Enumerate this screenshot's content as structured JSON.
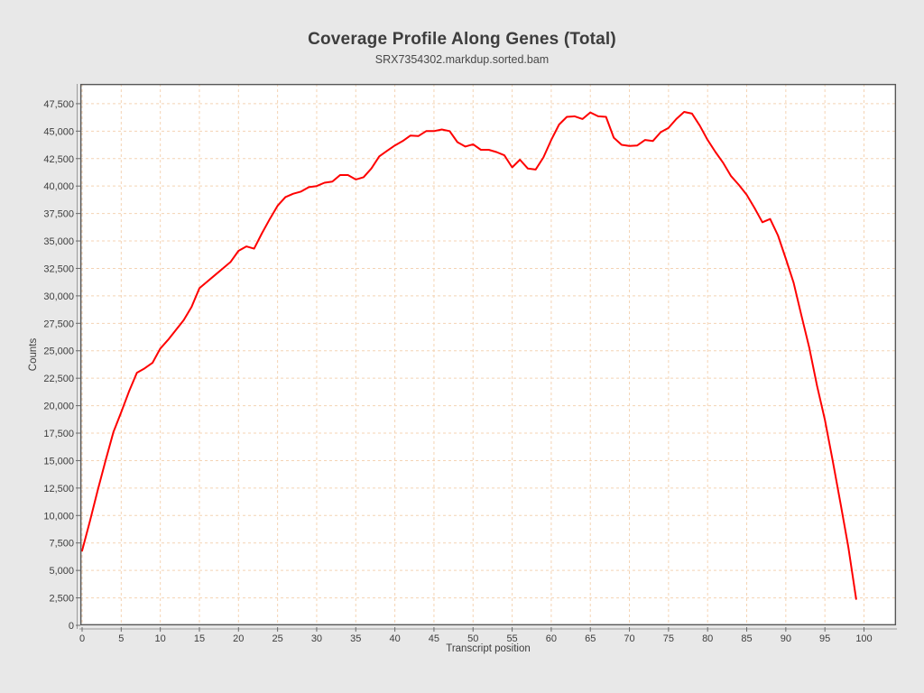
{
  "header": {
    "title": "Coverage Profile Along Genes (Total)",
    "subtitle": "SRX7354302.markdup.sorted.bam"
  },
  "colors": {
    "page_background": "#e8e8e8",
    "plot_background": "#ffffff",
    "grid": "#f4d3b3",
    "line": "#fe0000",
    "border": "#575757",
    "axis": "#9a9a9a",
    "tick": "#6b6b6b",
    "text": "#3d3d3d"
  },
  "chart_data": {
    "type": "line",
    "title": "Coverage Profile Along Genes (Total)",
    "subtitle": "SRX7354302.markdup.sorted.bam",
    "xlabel": "Transcript position",
    "ylabel": "Counts",
    "x_ticks": [
      0,
      5,
      10,
      15,
      20,
      25,
      30,
      35,
      40,
      45,
      50,
      55,
      60,
      65,
      70,
      75,
      80,
      85,
      90,
      95,
      100
    ],
    "y_ticks": [
      0,
      2500,
      5000,
      7500,
      10000,
      12500,
      15000,
      17500,
      20000,
      22500,
      25000,
      27500,
      30000,
      32500,
      35000,
      37500,
      40000,
      42500,
      45000,
      47500
    ],
    "xlim": [
      0,
      104
    ],
    "ylim": [
      0,
      49300
    ],
    "grid": true,
    "grid_style": "dashed",
    "legend_position": "none",
    "series": [
      {
        "name": "SRX7354302.markdup.sorted.bam",
        "color": "#fe0000",
        "x_start": 0,
        "x_step": 1,
        "values": [
          6800,
          9500,
          12300,
          15000,
          17600,
          19400,
          21300,
          23000,
          23400,
          23900,
          25200,
          26000,
          26900,
          27800,
          29000,
          30700,
          31300,
          31900,
          32500,
          33100,
          34100,
          34500,
          34300,
          35700,
          37000,
          38200,
          39000,
          39300,
          39500,
          39900,
          40000,
          40300,
          40400,
          41000,
          41000,
          40600,
          40800,
          41600,
          42700,
          43200,
          43700,
          44100,
          44600,
          44550,
          45000,
          45000,
          45150,
          45000,
          44000,
          43600,
          43800,
          43300,
          43300,
          43100,
          42800,
          41700,
          42400,
          41600,
          41500,
          42600,
          44200,
          45600,
          46300,
          46350,
          46100,
          46700,
          46350,
          46300,
          44400,
          43750,
          43650,
          43700,
          44200,
          44100,
          44900,
          45300,
          46100,
          46750,
          46600,
          45500,
          44200,
          43100,
          42100,
          40900,
          40100,
          39200,
          38000,
          36700,
          37000,
          35500,
          33400,
          31200,
          28200,
          25300,
          21800,
          18700,
          15000,
          11100,
          7100,
          2400
        ]
      }
    ]
  }
}
